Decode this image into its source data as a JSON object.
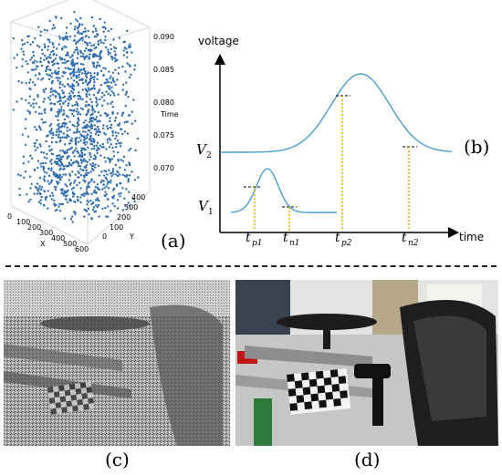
{
  "panel_a": {
    "caption": "(a)",
    "x_axis_label": "X",
    "y_axis_label": "Y",
    "z_axis_label": "Time",
    "x_ticks": [
      "0",
      "100",
      "200",
      "300",
      "400",
      "500",
      "600"
    ],
    "y_ticks": [
      "0",
      "100",
      "200",
      "300",
      "400"
    ],
    "z_ticks": [
      "0.090",
      "0.085",
      "0.080",
      "0.075",
      "0.070"
    ],
    "point_color": "#2f6db3"
  },
  "panel_b": {
    "caption": "(b)",
    "y_axis_label": "voltage",
    "x_axis_label": "time",
    "v1_label": "V",
    "v1_sub": "1",
    "v2_label": "V",
    "v2_sub": "2",
    "tp1": {
      "main": "t",
      "sub": "p1"
    },
    "tn1": {
      "main": "t",
      "sub": "n1"
    },
    "tp2": {
      "main": "t",
      "sub": "p2"
    },
    "tn2": {
      "main": "t",
      "sub": "n2"
    },
    "curve_color": "#4a9fd4",
    "marker_color": "#f0b400"
  },
  "panel_c": {
    "caption": "(c)"
  },
  "panel_d": {
    "caption": "(d)"
  }
}
